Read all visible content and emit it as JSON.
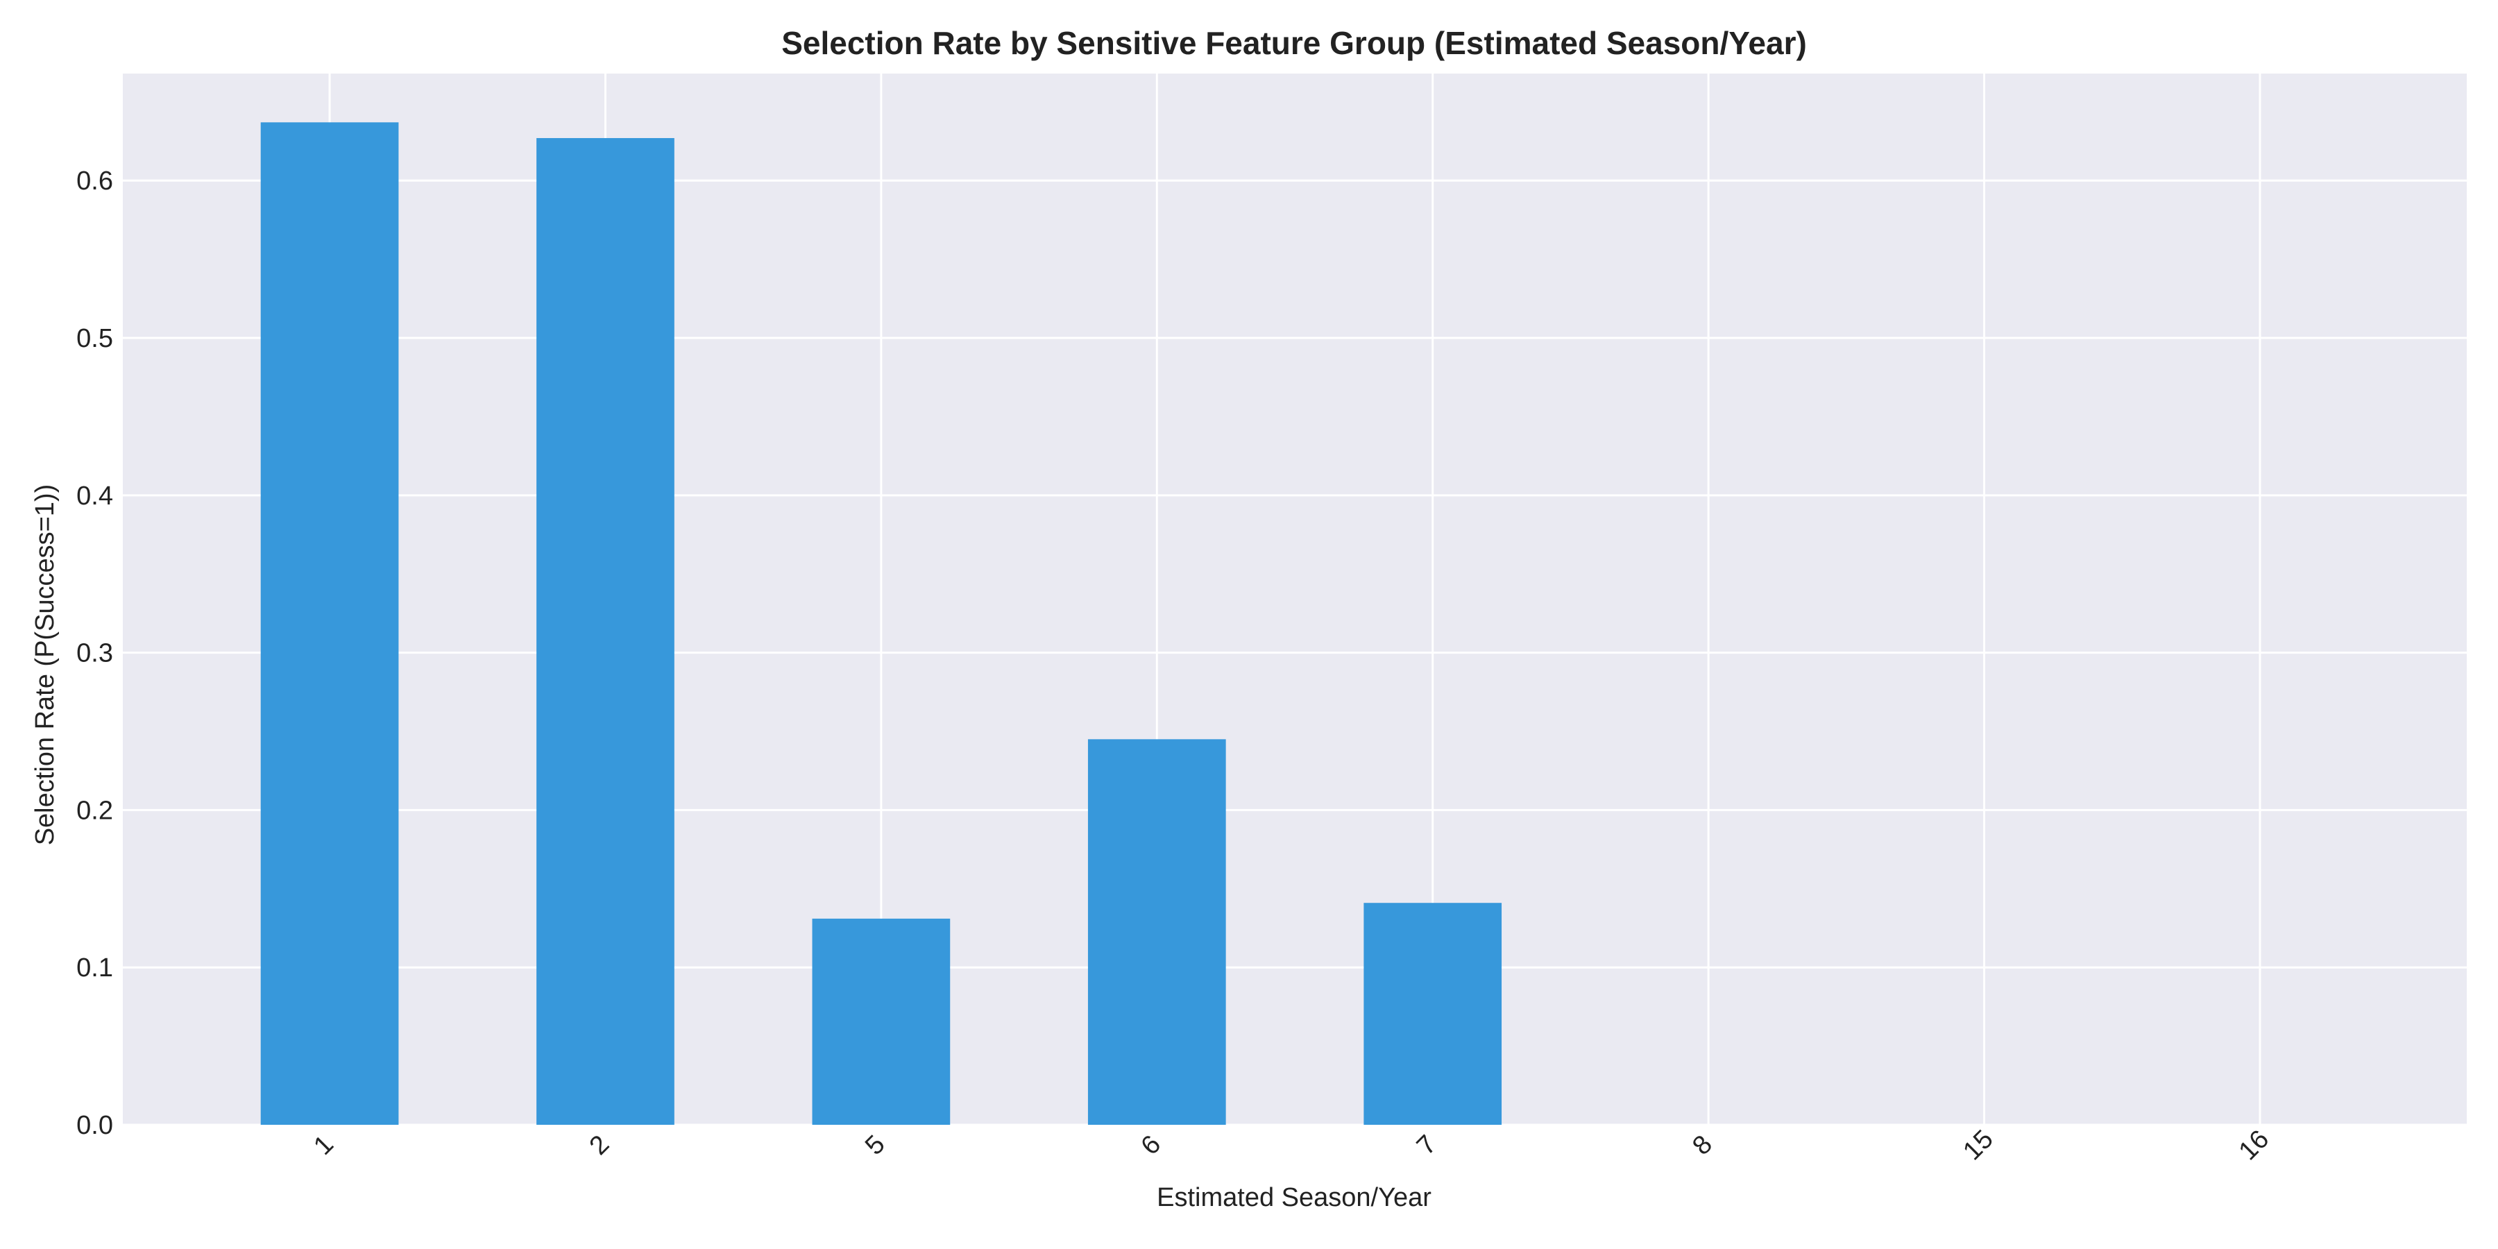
{
  "chart_data": {
    "type": "bar",
    "title": "Selection Rate by Sensitive Feature Group (Estimated Season/Year)",
    "xlabel": "Estimated Season/Year",
    "ylabel": "Selection Rate (P(Success=1))",
    "categories": [
      "1",
      "2",
      "5",
      "6",
      "7",
      "8",
      "15",
      "16"
    ],
    "values": [
      0.637,
      0.627,
      0.131,
      0.245,
      0.141,
      0.0,
      0.0,
      0.0
    ],
    "ylim": [
      0,
      0.668
    ],
    "yticks": [
      0.0,
      0.1,
      0.2,
      0.3,
      0.4,
      0.5,
      0.6
    ],
    "ytick_labels": [
      "0.0",
      "0.1",
      "0.2",
      "0.3",
      "0.4",
      "0.5",
      "0.6"
    ],
    "grid": true,
    "x_tick_rotation": -45,
    "colors": {
      "bar": "#3798db",
      "plot_background": "#eaeaf2",
      "grid": "#ffffff",
      "text": "#222222"
    }
  }
}
